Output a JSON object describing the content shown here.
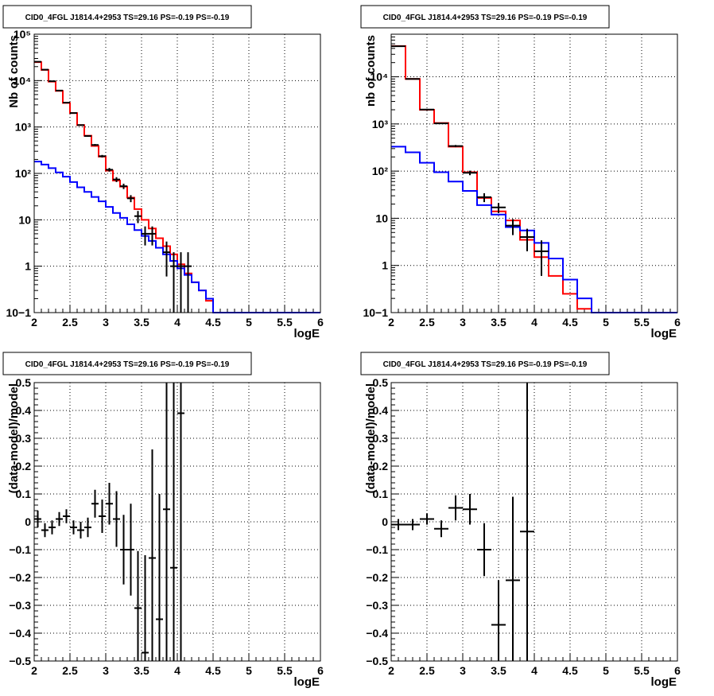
{
  "colors": {
    "data": "#000000",
    "model_total": "#ff0000",
    "model_component": "#0000ff",
    "grid": "#000000"
  },
  "chart_data": [
    {
      "type": "line",
      "title": "CID0_4FGL J1814.4+2953 TS=29.16 PS=-0.19 PS=-0.19",
      "xlabel": "logE",
      "ylabel": "Nb of counts",
      "xlim": [
        2,
        6
      ],
      "ylim": [
        0.1,
        100000
      ],
      "yscale": "log",
      "xticks": [
        "2",
        "2.5",
        "3",
        "3.5",
        "4",
        "4.5",
        "5",
        "5.5",
        "6"
      ],
      "yticks": [
        "10−1",
        "1",
        "10",
        "10²",
        "10³",
        "10⁴",
        "10⁵"
      ],
      "grid": true,
      "series": [
        {
          "role": "model-total",
          "color": "#ff0000",
          "step": true,
          "edges": [
            2.0,
            2.1,
            2.2,
            2.3,
            2.4,
            2.5,
            2.6,
            2.7,
            2.8,
            2.9,
            3.0,
            3.1,
            3.2,
            3.3,
            3.4,
            3.5,
            3.6,
            3.7,
            3.8,
            3.9,
            4.0,
            4.1,
            4.2,
            4.3,
            4.4,
            4.5,
            4.6,
            4.7,
            4.8,
            4.9,
            5.0,
            5.1,
            5.2,
            5.3,
            5.4,
            5.5,
            5.6,
            5.7,
            5.8,
            5.9,
            6.0
          ],
          "values": [
            25000,
            17000,
            9500,
            6000,
            3300,
            2000,
            1100,
            650,
            390,
            230,
            115,
            70,
            52,
            30,
            17,
            10,
            6.5,
            4.0,
            2.7,
            1.8,
            1.1,
            0.7,
            0.45,
            0.3,
            0.18,
            0.1,
            0.1,
            0.1,
            0.1,
            0.1,
            0.1,
            0.1,
            0.1,
            0.1,
            0.1,
            0.1,
            0.1,
            0.1,
            0.1,
            0.1
          ]
        },
        {
          "role": "model-component",
          "color": "#0000ff",
          "step": true,
          "edges": [
            2.0,
            2.1,
            2.2,
            2.3,
            2.4,
            2.5,
            2.6,
            2.7,
            2.8,
            2.9,
            3.0,
            3.1,
            3.2,
            3.3,
            3.4,
            3.5,
            3.6,
            3.7,
            3.8,
            3.9,
            4.0,
            4.1,
            4.2,
            4.3,
            4.4,
            4.5,
            4.6,
            4.7,
            4.8,
            4.9,
            5.0,
            5.1,
            5.2,
            5.3,
            5.4,
            5.5,
            5.6,
            5.7,
            5.8,
            5.9,
            6.0
          ],
          "values": [
            180,
            155,
            130,
            105,
            85,
            65,
            50,
            40,
            31,
            25,
            19,
            14,
            11,
            8,
            6,
            4.5,
            3.5,
            2.5,
            1.8,
            1.3,
            0.9,
            0.65,
            0.45,
            0.3,
            0.2,
            0.1,
            0.1,
            0.1,
            0.1,
            0.1,
            0.1,
            0.1,
            0.1,
            0.1,
            0.1,
            0.1,
            0.1,
            0.1,
            0.1,
            0.1
          ]
        },
        {
          "role": "data",
          "color": "#000000",
          "points": [
            {
              "x": 2.05,
              "y": 25500,
              "xerr": 0.05,
              "ylo": 25300,
              "yhi": 25700
            },
            {
              "x": 2.15,
              "y": 17200,
              "xerr": 0.05,
              "ylo": 17000,
              "yhi": 17400
            },
            {
              "x": 2.25,
              "y": 9700,
              "xerr": 0.05,
              "ylo": 9600,
              "yhi": 9800
            },
            {
              "x": 2.35,
              "y": 6100,
              "xerr": 0.05,
              "ylo": 6000,
              "yhi": 6200
            },
            {
              "x": 2.45,
              "y": 3350,
              "xerr": 0.05,
              "ylo": 3290,
              "yhi": 3410
            },
            {
              "x": 2.55,
              "y": 2000,
              "xerr": 0.05,
              "ylo": 1955,
              "yhi": 2045
            },
            {
              "x": 2.65,
              "y": 1100,
              "xerr": 0.05,
              "ylo": 1067,
              "yhi": 1133
            },
            {
              "x": 2.75,
              "y": 640,
              "xerr": 0.05,
              "ylo": 615,
              "yhi": 665
            },
            {
              "x": 2.85,
              "y": 410,
              "xerr": 0.05,
              "ylo": 390,
              "yhi": 430
            },
            {
              "x": 2.95,
              "y": 235,
              "xerr": 0.05,
              "ylo": 220,
              "yhi": 250
            },
            {
              "x": 3.05,
              "y": 120,
              "xerr": 0.05,
              "ylo": 109,
              "yhi": 131
            },
            {
              "x": 3.15,
              "y": 74,
              "xerr": 0.05,
              "ylo": 65,
              "yhi": 83
            },
            {
              "x": 3.25,
              "y": 53,
              "xerr": 0.05,
              "ylo": 46,
              "yhi": 60
            },
            {
              "x": 3.35,
              "y": 29,
              "xerr": 0.05,
              "ylo": 24,
              "yhi": 34
            },
            {
              "x": 3.45,
              "y": 12,
              "xerr": 0.05,
              "ylo": 8.5,
              "yhi": 15.5
            },
            {
              "x": 3.55,
              "y": 5,
              "xerr": 0.05,
              "ylo": 2.8,
              "yhi": 7.2
            },
            {
              "x": 3.65,
              "y": 5,
              "xerr": 0.05,
              "ylo": 2.8,
              "yhi": 7.2
            },
            {
              "x": 3.85,
              "y": 2,
              "xerr": 0.05,
              "ylo": 0.6,
              "yhi": 3.4
            },
            {
              "x": 3.95,
              "y": 1,
              "xerr": 0.05,
              "ylo": 0.1,
              "yhi": 2
            },
            {
              "x": 4.05,
              "y": 1,
              "xerr": 0.05,
              "ylo": 0.1,
              "yhi": 2
            },
            {
              "x": 4.15,
              "y": 1,
              "xerr": 0.05,
              "ylo": 0.1,
              "yhi": 2
            }
          ]
        }
      ]
    },
    {
      "type": "line",
      "title": "CID0_4FGL J1814.4+2953 TS=29.16 PS=-0.19 PS=-0.19",
      "xlabel": "logE",
      "ylabel": "nb of counts",
      "xlim": [
        2,
        6
      ],
      "ylim": [
        0.1,
        80000
      ],
      "yscale": "log",
      "xticks": [
        "2",
        "2.5",
        "3",
        "3.5",
        "4",
        "4.5",
        "5",
        "5.5",
        "6"
      ],
      "yticks": [
        "10−1",
        "1",
        "10",
        "10²",
        "10³",
        "10⁴"
      ],
      "grid": true,
      "series": [
        {
          "role": "model-total",
          "color": "#ff0000",
          "step": true,
          "edges": [
            2.0,
            2.2,
            2.4,
            2.6,
            2.8,
            3.0,
            3.2,
            3.4,
            3.6,
            3.8,
            4.0,
            4.2,
            4.4,
            4.6,
            4.8,
            5.0,
            5.2,
            5.4,
            5.6,
            5.8,
            6.0
          ],
          "values": [
            45000,
            9000,
            2000,
            1050,
            330,
            95,
            27,
            14,
            9,
            3.5,
            1.5,
            0.6,
            0.25,
            0.12,
            0.1,
            0.1,
            0.1,
            0.1,
            0.1,
            0.1
          ]
        },
        {
          "role": "model-component",
          "color": "#0000ff",
          "step": true,
          "edges": [
            2.0,
            2.2,
            2.4,
            2.6,
            2.8,
            3.0,
            3.2,
            3.4,
            3.6,
            3.8,
            4.0,
            4.2,
            4.4,
            4.6,
            4.8,
            5.0,
            5.2,
            5.4,
            5.6,
            5.8,
            6.0
          ],
          "values": [
            330,
            250,
            150,
            95,
            60,
            38,
            19,
            12,
            6.5,
            5.5,
            3,
            1.4,
            0.5,
            0.2,
            0.1,
            0.1,
            0.1,
            0.1,
            0.1,
            0.1
          ]
        },
        {
          "role": "data",
          "color": "#000000",
          "points": [
            {
              "x": 2.1,
              "y": 44500,
              "xerr": 0.1,
              "ylo": 44300,
              "yhi": 44700
            },
            {
              "x": 2.3,
              "y": 9000,
              "xerr": 0.1,
              "ylo": 8900,
              "yhi": 9100
            },
            {
              "x": 2.5,
              "y": 2020,
              "xerr": 0.1,
              "ylo": 1975,
              "yhi": 2065
            },
            {
              "x": 2.7,
              "y": 1030,
              "xerr": 0.1,
              "ylo": 998,
              "yhi": 1062
            },
            {
              "x": 2.9,
              "y": 340,
              "xerr": 0.1,
              "ylo": 322,
              "yhi": 358
            },
            {
              "x": 3.1,
              "y": 92,
              "xerr": 0.1,
              "ylo": 82,
              "yhi": 102
            },
            {
              "x": 3.3,
              "y": 28,
              "xerr": 0.1,
              "ylo": 22,
              "yhi": 34
            },
            {
              "x": 3.5,
              "y": 17,
              "xerr": 0.1,
              "ylo": 13,
              "yhi": 21
            },
            {
              "x": 3.7,
              "y": 7,
              "xerr": 0.1,
              "ylo": 4.4,
              "yhi": 9.6
            },
            {
              "x": 3.9,
              "y": 4,
              "xerr": 0.1,
              "ylo": 2,
              "yhi": 6
            },
            {
              "x": 4.1,
              "y": 2,
              "xerr": 0.1,
              "ylo": 0.6,
              "yhi": 3.4
            }
          ]
        }
      ]
    },
    {
      "type": "scatter",
      "title": "CID0_4FGL J1814.4+2953 TS=29.16 PS=-0.19 PS=-0.19",
      "xlabel": "logE",
      "ylabel": "(data-model)/model",
      "xlim": [
        2,
        6
      ],
      "ylim": [
        -0.5,
        0.5
      ],
      "xticks": [
        "2",
        "2.5",
        "3",
        "3.5",
        "4",
        "4.5",
        "5",
        "5.5",
        "6"
      ],
      "yticks": [
        "−0.5",
        "−0.4",
        "−0.3",
        "−0.2",
        "−0.1",
        "0",
        "0.1",
        "0.2",
        "0.3",
        "0.4",
        "0.5"
      ],
      "grid": true,
      "series": [
        {
          "role": "residual",
          "color": "#000000",
          "points": [
            {
              "x": 2.05,
              "y": 0.01,
              "xerr": 0.05,
              "yerr": 0.03
            },
            {
              "x": 2.15,
              "y": -0.03,
              "xerr": 0.05,
              "yerr": 0.025
            },
            {
              "x": 2.25,
              "y": -0.02,
              "xerr": 0.05,
              "yerr": 0.025
            },
            {
              "x": 2.35,
              "y": 0.01,
              "xerr": 0.05,
              "yerr": 0.025
            },
            {
              "x": 2.45,
              "y": 0.02,
              "xerr": 0.05,
              "yerr": 0.025
            },
            {
              "x": 2.55,
              "y": -0.02,
              "xerr": 0.05,
              "yerr": 0.025
            },
            {
              "x": 2.65,
              "y": -0.03,
              "xerr": 0.05,
              "yerr": 0.03
            },
            {
              "x": 2.75,
              "y": -0.02,
              "xerr": 0.05,
              "yerr": 0.035
            },
            {
              "x": 2.85,
              "y": 0.065,
              "xerr": 0.05,
              "yerr": 0.05
            },
            {
              "x": 2.95,
              "y": 0.02,
              "xerr": 0.05,
              "yerr": 0.06
            },
            {
              "x": 3.05,
              "y": 0.065,
              "xerr": 0.05,
              "yerr": 0.075
            },
            {
              "x": 3.15,
              "y": 0.01,
              "xerr": 0.05,
              "yerr": 0.1
            },
            {
              "x": 3.25,
              "y": -0.1,
              "xerr": 0.05,
              "yerr": 0.125
            },
            {
              "x": 3.35,
              "y": -0.1,
              "xerr": 0.05,
              "yerr": 0.165
            },
            {
              "x": 3.45,
              "y": -0.31,
              "xerr": 0.05,
              "yerr": 0.205
            },
            {
              "x": 3.55,
              "y": -0.47,
              "xerr": 0.05,
              "yerr": 0.35
            },
            {
              "x": 3.65,
              "y": -0.13,
              "xerr": 0.05,
              "yerr": 0.39
            },
            {
              "x": 3.75,
              "y": -0.35,
              "xerr": 0.05,
              "yerr": 0.45
            },
            {
              "x": 3.85,
              "y": 0.045,
              "xerr": 0.05,
              "yerr": 0.7
            },
            {
              "x": 3.95,
              "y": -0.165,
              "xerr": 0.05,
              "yerr": 1.0
            },
            {
              "x": 4.05,
              "y": 0.39,
              "xerr": 0.05,
              "yerr": 1.0
            }
          ]
        }
      ]
    },
    {
      "type": "scatter",
      "title": "CID0_4FGL J1814.4+2953 TS=29.16 PS=-0.19 PS=-0.19",
      "xlabel": "logE",
      "ylabel": "(data-model)/model",
      "xlim": [
        2,
        6
      ],
      "ylim": [
        -0.5,
        0.5
      ],
      "xticks": [
        "2",
        "2.5",
        "3",
        "3.5",
        "4",
        "4.5",
        "5",
        "5.5",
        "6"
      ],
      "yticks": [
        "−0.5",
        "−0.4",
        "−0.3",
        "−0.2",
        "−0.1",
        "0",
        "0.1",
        "0.2",
        "0.3",
        "0.4",
        "0.5"
      ],
      "grid": true,
      "series": [
        {
          "role": "residual",
          "color": "#000000",
          "points": [
            {
              "x": 2.1,
              "y": -0.01,
              "xerr": 0.1,
              "yerr": 0.02
            },
            {
              "x": 2.3,
              "y": -0.01,
              "xerr": 0.1,
              "yerr": 0.02
            },
            {
              "x": 2.5,
              "y": 0.01,
              "xerr": 0.1,
              "yerr": 0.02
            },
            {
              "x": 2.7,
              "y": -0.025,
              "xerr": 0.1,
              "yerr": 0.03
            },
            {
              "x": 2.9,
              "y": 0.05,
              "xerr": 0.1,
              "yerr": 0.045
            },
            {
              "x": 3.1,
              "y": 0.045,
              "xerr": 0.1,
              "yerr": 0.055
            },
            {
              "x": 3.3,
              "y": -0.1,
              "xerr": 0.1,
              "yerr": 0.095
            },
            {
              "x": 3.5,
              "y": -0.37,
              "xerr": 0.1,
              "yerr": 0.16
            },
            {
              "x": 3.7,
              "y": -0.21,
              "xerr": 0.1,
              "yerr": 0.3
            },
            {
              "x": 3.9,
              "y": -0.035,
              "xerr": 0.1,
              "yerr": 0.8
            }
          ]
        }
      ]
    }
  ]
}
